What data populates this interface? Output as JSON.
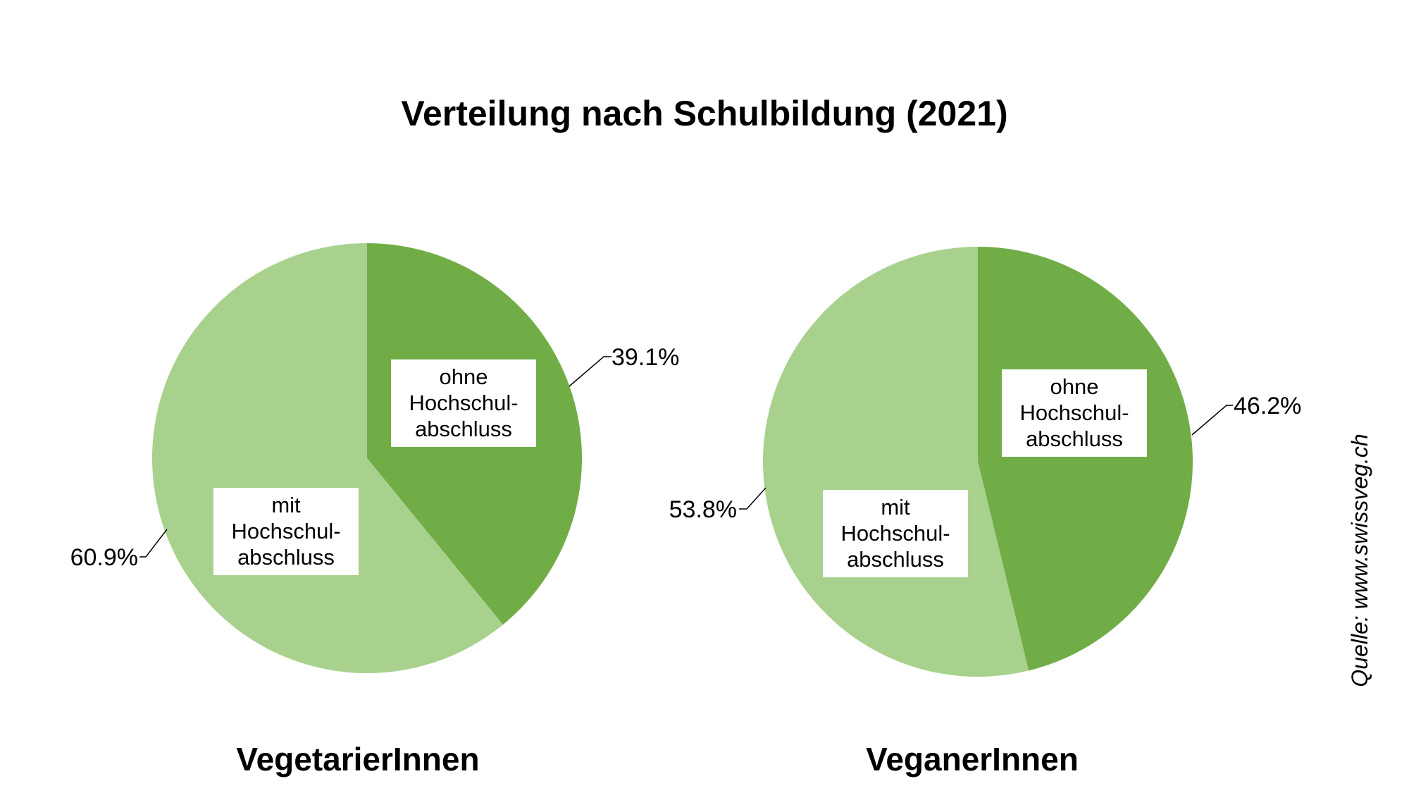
{
  "title": "Verteilung nach Schulbildung (2021)",
  "source": "Quelle: www.swissveg.ch",
  "colors": {
    "dark_green": "#70ad47",
    "light_green": "#a9d18e"
  },
  "chart_data": [
    {
      "type": "pie",
      "subtitle": "VegetarierInnen",
      "slices": [
        {
          "label": "ohne Hochschul- abschluss",
          "label_lines": [
            "ohne",
            "Hochschul-",
            "abschluss"
          ],
          "value": 39.1,
          "value_label": "39.1%",
          "color": "#70ad47"
        },
        {
          "label": "mit Hochschul- abschluss",
          "label_lines": [
            "mit",
            "Hochschul-",
            "abschluss"
          ],
          "value": 60.9,
          "value_label": "60.9%",
          "color": "#a9d18e"
        }
      ]
    },
    {
      "type": "pie",
      "subtitle": "VeganerInnen",
      "slices": [
        {
          "label": "ohne Hochschul- abschluss",
          "label_lines": [
            "ohne",
            "Hochschul-",
            "abschluss"
          ],
          "value": 46.2,
          "value_label": "46.2%",
          "color": "#70ad47"
        },
        {
          "label": "mit Hochschul- abschluss",
          "label_lines": [
            "mit",
            "Hochschul-",
            "abschluss"
          ],
          "value": 53.8,
          "value_label": "53.8%",
          "color": "#a9d18e"
        }
      ]
    }
  ]
}
